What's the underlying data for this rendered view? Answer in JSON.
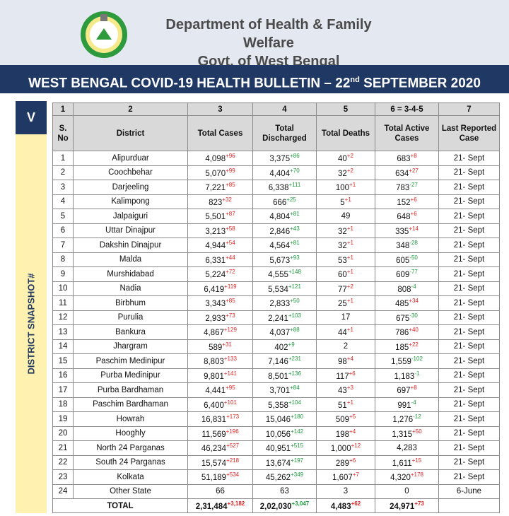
{
  "header": {
    "title": "Department of Health & Family Welfare",
    "subtitle": "Govt. of West Bengal"
  },
  "bulletin": {
    "prefix": "WEST BENGAL COVID-19 HEALTH BULLETIN – 22",
    "suffix": "nd",
    "rest": "SEPTEMBER 2020"
  },
  "section": {
    "badge": "V",
    "label": "DISTRICT SNAPSHOT#"
  },
  "table": {
    "column_numbers": [
      "1",
      "2",
      "3",
      "4",
      "5",
      "6 = 3-4-5",
      "7"
    ],
    "columns": [
      "S. No",
      "District",
      "Total Cases",
      "Total Discharged",
      "Total Deaths",
      "Total Active Cases",
      "Last Reported Case"
    ],
    "rows": [
      [
        "1",
        "Alipurduar",
        "4,098",
        "+96",
        "3,375",
        "+86",
        "40",
        "+2",
        "683",
        "+8",
        "21- Sept"
      ],
      [
        "2",
        "Coochbehar",
        "5,070",
        "+99",
        "4,404",
        "+70",
        "32",
        "+2",
        "634",
        "+27",
        "21- Sept"
      ],
      [
        "3",
        "Darjeeling",
        "7,221",
        "+85",
        "6,338",
        "+111",
        "100",
        "+1",
        "783",
        "-27",
        "21- Sept"
      ],
      [
        "4",
        "Kalimpong",
        "823",
        "+32",
        "666",
        "+25",
        "5",
        "+1",
        "152",
        "+6",
        "21- Sept"
      ],
      [
        "5",
        "Jalpaiguri",
        "5,501",
        "+87",
        "4,804",
        "+81",
        "49",
        null,
        "648",
        "+6",
        "21- Sept"
      ],
      [
        "6",
        "Uttar Dinajpur",
        "3,213",
        "+58",
        "2,846",
        "+43",
        "32",
        "+1",
        "335",
        "+14",
        "21- Sept"
      ],
      [
        "7",
        "Dakshin Dinajpur",
        "4,944",
        "+54",
        "4,564",
        "+81",
        "32",
        "+1",
        "348",
        "-28",
        "21- Sept"
      ],
      [
        "8",
        "Malda",
        "6,331",
        "+44",
        "5,673",
        "+93",
        "53",
        "+1",
        "605",
        "-50",
        "21- Sept"
      ],
      [
        "9",
        "Murshidabad",
        "5,224",
        "+72",
        "4,555",
        "+148",
        "60",
        "+1",
        "609",
        "-77",
        "21- Sept"
      ],
      [
        "10",
        "Nadia",
        "6,419",
        "+119",
        "5,534",
        "+121",
        "77",
        "+2",
        "808",
        "-4",
        "21- Sept"
      ],
      [
        "11",
        "Birbhum",
        "3,343",
        "+85",
        "2,833",
        "+50",
        "25",
        "+1",
        "485",
        "+34",
        "21- Sept"
      ],
      [
        "12",
        "Purulia",
        "2,933",
        "+73",
        "2,241",
        "+103",
        "17",
        null,
        "675",
        "-30",
        "21- Sept"
      ],
      [
        "13",
        "Bankura",
        "4,867",
        "+129",
        "4,037",
        "+88",
        "44",
        "+1",
        "786",
        "+40",
        "21- Sept"
      ],
      [
        "14",
        "Jhargram",
        "589",
        "+31",
        "402",
        "+9",
        "2",
        null,
        "185",
        "+22",
        "21- Sept"
      ],
      [
        "15",
        "Paschim Medinipur",
        "8,803",
        "+133",
        "7,146",
        "+231",
        "98",
        "+4",
        "1,559",
        "-102",
        "21- Sept"
      ],
      [
        "16",
        "Purba Medinipur",
        "9,801",
        "+141",
        "8,501",
        "+136",
        "117",
        "+6",
        "1,183",
        "-1",
        "21- Sept"
      ],
      [
        "17",
        "Purba Bardhaman",
        "4,441",
        "+95",
        "3,701",
        "+84",
        "43",
        "+3",
        "697",
        "+8",
        "21- Sept"
      ],
      [
        "18",
        "Paschim Bardhaman",
        "6,400",
        "+101",
        "5,358",
        "+104",
        "51",
        "+1",
        "991",
        "-4",
        "21- Sept"
      ],
      [
        "19",
        "Howrah",
        "16,831",
        "+173",
        "15,046",
        "+180",
        "509",
        "+5",
        "1,276",
        "-12",
        "21- Sept"
      ],
      [
        "20",
        "Hooghly",
        "11,569",
        "+196",
        "10,056",
        "+142",
        "198",
        "+4",
        "1,315",
        "+50",
        "21- Sept"
      ],
      [
        "21",
        "North 24 Parganas",
        "46,234",
        "+527",
        "40,951",
        "+515",
        "1,000",
        "+12",
        "4,283",
        null,
        "21- Sept"
      ],
      [
        "22",
        "South 24 Parganas",
        "15,574",
        "+218",
        "13,674",
        "+197",
        "289",
        "+6",
        "1,611",
        "+15",
        "21- Sept"
      ],
      [
        "23",
        "Kolkata",
        "51,189",
        "+534",
        "45,262",
        "+349",
        "1,607",
        "+7",
        "4,320",
        "+178",
        "21- Sept"
      ],
      [
        "24",
        "Other State",
        "66",
        null,
        "63",
        null,
        "3",
        null,
        "0",
        null,
        "6-June"
      ]
    ],
    "total": {
      "label": "TOTAL",
      "cells": [
        "2,31,484",
        "+3,182",
        "2,02,030",
        "+3,047",
        "4,483",
        "+62",
        "24,971",
        "+73"
      ]
    }
  }
}
